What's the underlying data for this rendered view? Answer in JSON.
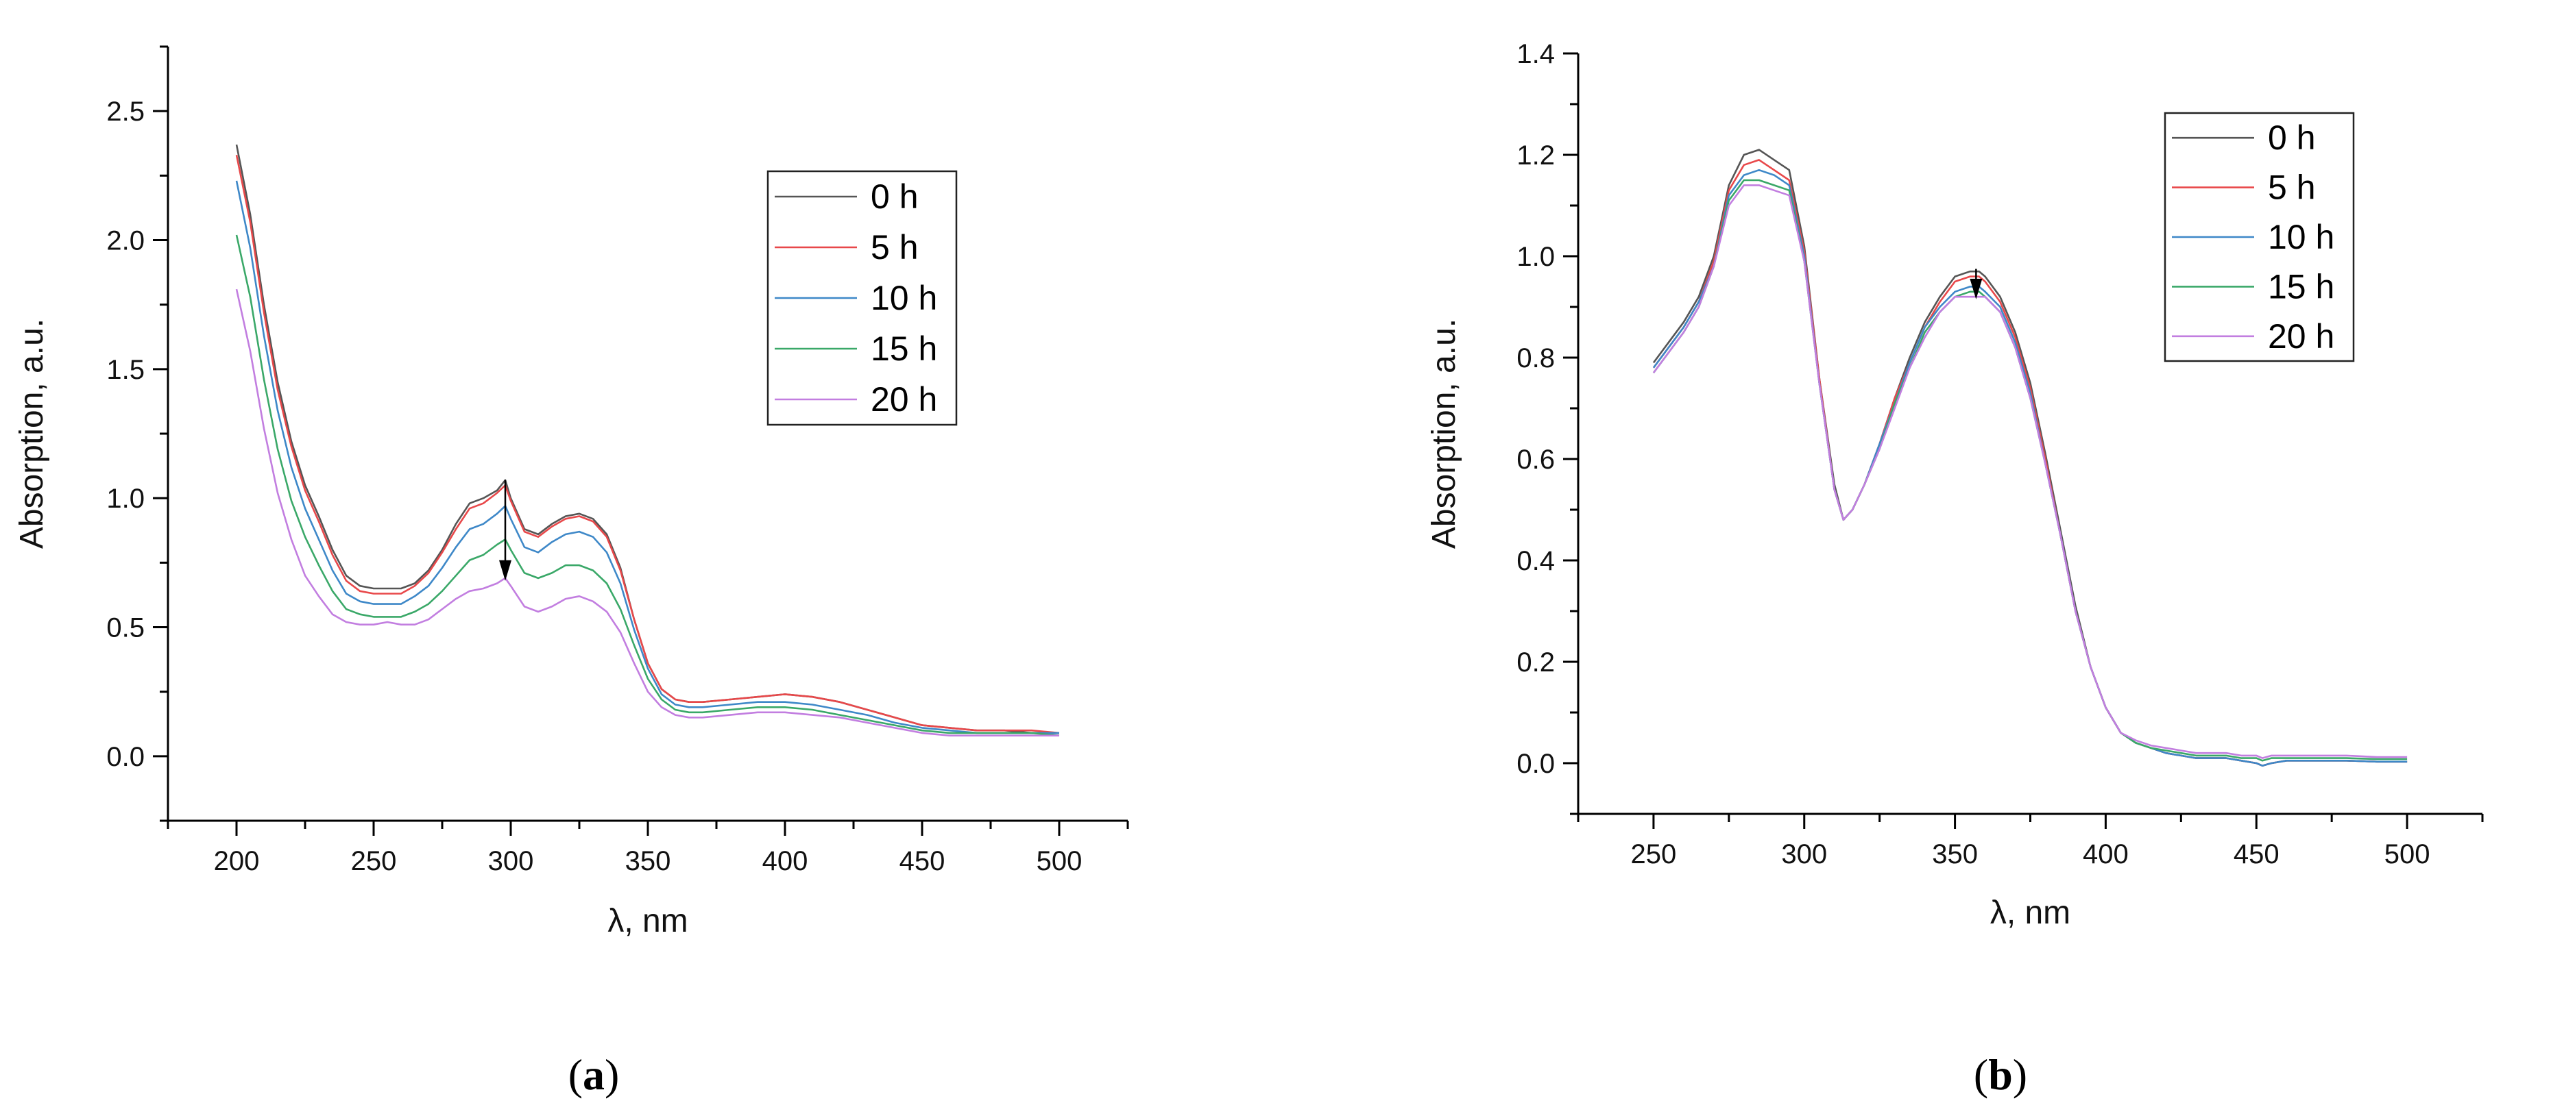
{
  "chart_data": [
    {
      "type": "line",
      "panel_label": "a",
      "xlabel": "λ, nm",
      "ylabel": "Absorption, a.u.",
      "xlim": [
        175,
        525
      ],
      "ylim": [
        -0.25,
        2.75
      ],
      "xticks": [
        200,
        250,
        300,
        350,
        400,
        450,
        500
      ],
      "xtick_labels": [
        "200",
        "250",
        "300",
        "350",
        "400",
        "450",
        "500"
      ],
      "yticks": [
        0.0,
        0.5,
        1.0,
        1.5,
        2.0,
        2.5
      ],
      "ytick_labels": [
        "0.0",
        "0.5",
        "1.0",
        "1.5",
        "2.0",
        "2.5"
      ],
      "grid": false,
      "legend_position": "top-right",
      "annotation": "downward arrow at 298 nm from 1.05 to 0.68",
      "x": [
        200,
        205,
        210,
        215,
        220,
        225,
        230,
        235,
        240,
        245,
        250,
        255,
        260,
        265,
        270,
        275,
        280,
        285,
        290,
        295,
        298,
        300,
        305,
        310,
        315,
        320,
        325,
        330,
        335,
        340,
        345,
        350,
        355,
        360,
        365,
        370,
        380,
        390,
        400,
        410,
        420,
        430,
        440,
        450,
        460,
        470,
        480,
        490,
        500
      ],
      "series": [
        {
          "name": "0 h",
          "color": "#555555",
          "values": [
            2.37,
            2.1,
            1.75,
            1.45,
            1.22,
            1.05,
            0.93,
            0.8,
            0.7,
            0.66,
            0.65,
            0.65,
            0.65,
            0.67,
            0.72,
            0.8,
            0.9,
            0.98,
            1.0,
            1.03,
            1.07,
            1.0,
            0.88,
            0.86,
            0.9,
            0.93,
            0.94,
            0.92,
            0.86,
            0.73,
            0.53,
            0.36,
            0.26,
            0.22,
            0.21,
            0.21,
            0.22,
            0.23,
            0.24,
            0.23,
            0.21,
            0.18,
            0.15,
            0.12,
            0.11,
            0.1,
            0.1,
            0.09,
            0.09
          ]
        },
        {
          "name": "5 h",
          "color": "#e8484a",
          "values": [
            2.33,
            2.07,
            1.72,
            1.42,
            1.2,
            1.03,
            0.91,
            0.78,
            0.68,
            0.64,
            0.63,
            0.63,
            0.63,
            0.66,
            0.71,
            0.79,
            0.88,
            0.96,
            0.98,
            1.02,
            1.05,
            0.99,
            0.87,
            0.85,
            0.89,
            0.92,
            0.93,
            0.91,
            0.85,
            0.72,
            0.53,
            0.36,
            0.26,
            0.22,
            0.21,
            0.21,
            0.22,
            0.23,
            0.24,
            0.23,
            0.21,
            0.18,
            0.15,
            0.12,
            0.11,
            0.1,
            0.1,
            0.1,
            0.09
          ]
        },
        {
          "name": "10 h",
          "color": "#3e88c8",
          "values": [
            2.23,
            1.97,
            1.63,
            1.34,
            1.12,
            0.96,
            0.84,
            0.72,
            0.63,
            0.6,
            0.59,
            0.59,
            0.59,
            0.62,
            0.66,
            0.73,
            0.81,
            0.88,
            0.9,
            0.94,
            0.97,
            0.92,
            0.81,
            0.79,
            0.83,
            0.86,
            0.87,
            0.85,
            0.79,
            0.67,
            0.49,
            0.34,
            0.24,
            0.2,
            0.19,
            0.19,
            0.2,
            0.21,
            0.21,
            0.2,
            0.18,
            0.16,
            0.13,
            0.11,
            0.1,
            0.09,
            0.09,
            0.09,
            0.09
          ]
        },
        {
          "name": "15 h",
          "color": "#3aa868",
          "values": [
            2.02,
            1.78,
            1.46,
            1.19,
            0.99,
            0.85,
            0.74,
            0.64,
            0.57,
            0.55,
            0.54,
            0.54,
            0.54,
            0.56,
            0.59,
            0.64,
            0.7,
            0.76,
            0.78,
            0.82,
            0.84,
            0.8,
            0.71,
            0.69,
            0.71,
            0.74,
            0.74,
            0.72,
            0.67,
            0.57,
            0.43,
            0.3,
            0.22,
            0.18,
            0.17,
            0.17,
            0.18,
            0.19,
            0.19,
            0.18,
            0.16,
            0.14,
            0.12,
            0.1,
            0.09,
            0.09,
            0.09,
            0.09,
            0.08
          ]
        },
        {
          "name": "20 h",
          "color": "#c27ee0",
          "values": [
            1.81,
            1.57,
            1.27,
            1.02,
            0.84,
            0.7,
            0.62,
            0.55,
            0.52,
            0.51,
            0.51,
            0.52,
            0.51,
            0.51,
            0.53,
            0.57,
            0.61,
            0.64,
            0.65,
            0.67,
            0.69,
            0.66,
            0.58,
            0.56,
            0.58,
            0.61,
            0.62,
            0.6,
            0.56,
            0.48,
            0.36,
            0.25,
            0.19,
            0.16,
            0.15,
            0.15,
            0.16,
            0.17,
            0.17,
            0.16,
            0.15,
            0.13,
            0.11,
            0.09,
            0.08,
            0.08,
            0.08,
            0.08,
            0.08
          ]
        }
      ]
    },
    {
      "type": "line",
      "panel_label": "b",
      "xlabel": "λ, nm",
      "ylabel": "Absorption, a.u.",
      "xlim": [
        225,
        525
      ],
      "ylim": [
        -0.1,
        1.4
      ],
      "xticks": [
        250,
        300,
        350,
        400,
        450,
        500
      ],
      "xtick_labels": [
        "250",
        "300",
        "350",
        "400",
        "450",
        "500"
      ],
      "yticks": [
        0.0,
        0.2,
        0.4,
        0.6,
        0.8,
        1.0,
        1.2,
        1.4
      ],
      "ytick_labels": [
        "0.0",
        "0.2",
        "0.4",
        "0.6",
        "0.8",
        "1.0",
        "1.2",
        "1.4"
      ],
      "grid": false,
      "legend_position": "top-right",
      "annotation": "downward arrow at 357 nm from 0.97 to 0.92",
      "x": [
        250,
        255,
        260,
        265,
        270,
        275,
        280,
        285,
        290,
        295,
        300,
        305,
        310,
        313,
        316,
        320,
        325,
        330,
        335,
        340,
        345,
        350,
        355,
        358,
        360,
        365,
        370,
        375,
        380,
        385,
        390,
        395,
        400,
        405,
        410,
        415,
        420,
        425,
        430,
        435,
        440,
        445,
        450,
        452,
        455,
        460,
        470,
        480,
        490,
        500
      ],
      "series": [
        {
          "name": "0 h",
          "color": "#555555",
          "values": [
            0.79,
            0.83,
            0.87,
            0.92,
            1.0,
            1.14,
            1.2,
            1.21,
            1.19,
            1.17,
            1.02,
            0.76,
            0.55,
            0.48,
            0.5,
            0.55,
            0.63,
            0.72,
            0.8,
            0.87,
            0.92,
            0.96,
            0.97,
            0.97,
            0.96,
            0.92,
            0.85,
            0.75,
            0.61,
            0.46,
            0.31,
            0.19,
            0.11,
            0.06,
            0.04,
            0.03,
            0.02,
            0.015,
            0.01,
            0.01,
            0.01,
            0.005,
            0.0,
            -0.005,
            0.0,
            0.005,
            0.005,
            0.005,
            0.003,
            0.003
          ]
        },
        {
          "name": "5 h",
          "color": "#e8484a",
          "values": [
            0.78,
            0.82,
            0.86,
            0.91,
            0.99,
            1.13,
            1.18,
            1.19,
            1.17,
            1.15,
            1.01,
            0.76,
            0.54,
            0.48,
            0.5,
            0.55,
            0.63,
            0.72,
            0.79,
            0.86,
            0.91,
            0.95,
            0.96,
            0.96,
            0.95,
            0.91,
            0.84,
            0.74,
            0.6,
            0.45,
            0.3,
            0.19,
            0.11,
            0.06,
            0.04,
            0.03,
            0.02,
            0.015,
            0.01,
            0.01,
            0.01,
            0.005,
            0.0,
            -0.005,
            0.0,
            0.005,
            0.005,
            0.005,
            0.003,
            0.003
          ]
        },
        {
          "name": "10 h",
          "color": "#3e88c8",
          "values": [
            0.78,
            0.82,
            0.86,
            0.91,
            0.98,
            1.12,
            1.16,
            1.17,
            1.16,
            1.14,
            1.0,
            0.75,
            0.54,
            0.48,
            0.5,
            0.55,
            0.63,
            0.71,
            0.79,
            0.86,
            0.9,
            0.93,
            0.94,
            0.94,
            0.93,
            0.9,
            0.83,
            0.73,
            0.59,
            0.45,
            0.3,
            0.19,
            0.11,
            0.06,
            0.04,
            0.03,
            0.02,
            0.015,
            0.01,
            0.01,
            0.01,
            0.005,
            0.0,
            -0.005,
            0.0,
            0.005,
            0.005,
            0.005,
            0.003,
            0.003
          ]
        },
        {
          "name": "15 h",
          "color": "#3aa868",
          "values": [
            0.77,
            0.81,
            0.85,
            0.9,
            0.98,
            1.11,
            1.15,
            1.15,
            1.14,
            1.13,
            0.99,
            0.75,
            0.54,
            0.48,
            0.5,
            0.55,
            0.62,
            0.71,
            0.78,
            0.85,
            0.89,
            0.92,
            0.93,
            0.93,
            0.92,
            0.89,
            0.82,
            0.72,
            0.59,
            0.45,
            0.3,
            0.19,
            0.11,
            0.06,
            0.04,
            0.03,
            0.025,
            0.02,
            0.015,
            0.015,
            0.015,
            0.01,
            0.01,
            0.005,
            0.01,
            0.01,
            0.01,
            0.01,
            0.008,
            0.008
          ]
        },
        {
          "name": "20 h",
          "color": "#c27ee0",
          "values": [
            0.77,
            0.81,
            0.85,
            0.9,
            0.98,
            1.1,
            1.14,
            1.14,
            1.13,
            1.12,
            0.99,
            0.75,
            0.54,
            0.48,
            0.5,
            0.55,
            0.62,
            0.7,
            0.78,
            0.84,
            0.89,
            0.92,
            0.92,
            0.92,
            0.92,
            0.89,
            0.82,
            0.72,
            0.59,
            0.45,
            0.3,
            0.19,
            0.11,
            0.06,
            0.045,
            0.035,
            0.03,
            0.025,
            0.02,
            0.02,
            0.02,
            0.015,
            0.015,
            0.01,
            0.015,
            0.015,
            0.015,
            0.015,
            0.012,
            0.012
          ]
        }
      ]
    }
  ]
}
